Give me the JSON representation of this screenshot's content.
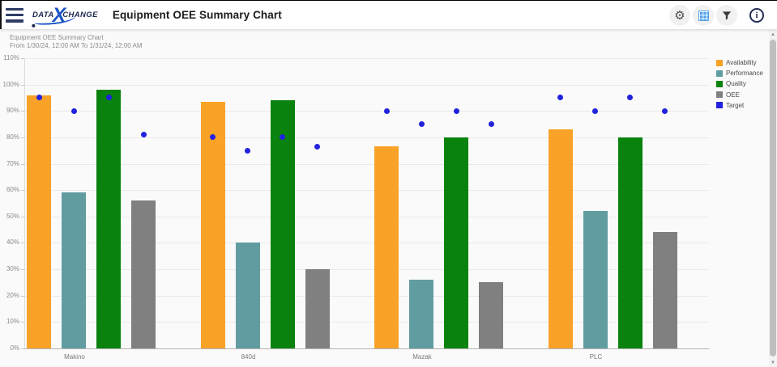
{
  "header": {
    "logo": {
      "data": "DATA",
      "x": "X",
      "change": "CHANGE"
    },
    "title": "Equipment OEE Summary Chart",
    "actions": {
      "info_glyph": "i"
    }
  },
  "chart": {
    "title": "Equipment OEE Summary Chart",
    "subtitle": "From 1/30/24, 12:00 AM To 1/31/24, 12:00 AM"
  },
  "chart_data": {
    "type": "bar",
    "title": "Equipment OEE Summary Chart",
    "subtitle": "From 1/30/24, 12:00 AM To 1/31/24, 12:00 AM",
    "categories": [
      "Makino",
      "840d",
      "Mazak",
      "PLC"
    ],
    "series": [
      {
        "name": "Availability",
        "color": "#F9A228",
        "values": [
          96,
          93.5,
          76.5,
          83
        ]
      },
      {
        "name": "Performance",
        "color": "#619DA0",
        "values": [
          59,
          40,
          26,
          52
        ]
      },
      {
        "name": "Quality",
        "color": "#0A820E",
        "values": [
          98,
          94,
          80,
          80
        ]
      },
      {
        "name": "OEE",
        "color": "#808080",
        "values": [
          56,
          30,
          25,
          44
        ]
      }
    ],
    "target_series": {
      "name": "Target",
      "type": "scatter",
      "color": "#2222DD",
      "values_by_category": [
        [
          95,
          90,
          95,
          81
        ],
        [
          80,
          75,
          80,
          76.5
        ],
        [
          90,
          85,
          90,
          85
        ],
        [
          95,
          90,
          95,
          90
        ]
      ]
    },
    "ylim": [
      0,
      110
    ],
    "ytick_step": 10,
    "yticks": [
      "0%",
      "10%",
      "20%",
      "30%",
      "40%",
      "50%",
      "60%",
      "70%",
      "80%",
      "90%",
      "100%",
      "110%"
    ],
    "grid": true,
    "legend_position": "right",
    "legend": [
      "Availability",
      "Performance",
      "Quality",
      "OEE",
      "Target"
    ]
  }
}
